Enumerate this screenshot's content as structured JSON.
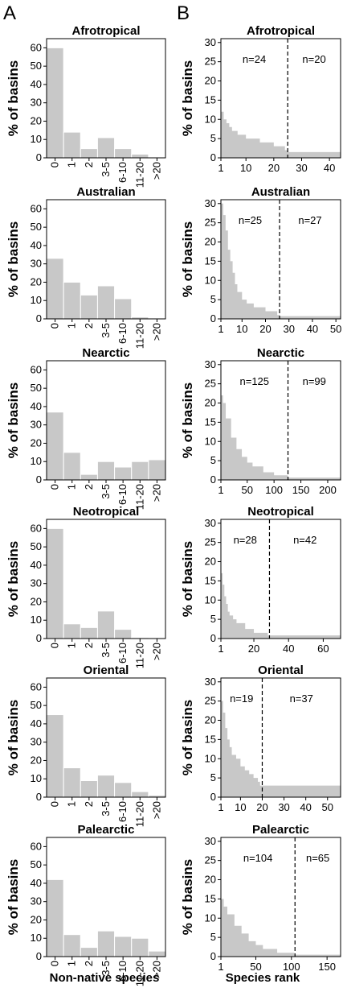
{
  "panel_labels": {
    "left": "A",
    "right": "B"
  },
  "axis_titles": {
    "y": "% of basins",
    "x_left": "Non-native species",
    "x_right": "Species rank"
  },
  "colors": {
    "bar": "#c8c8c8",
    "bar_edge": "#ffffff",
    "axis": "#000000"
  },
  "chart_data": [
    {
      "panel": "A",
      "type": "bar",
      "title": "Afrotropical",
      "categories": [
        "0",
        "1",
        "2",
        "3-5",
        "6-10",
        "11-20",
        ">20"
      ],
      "values": [
        60,
        14,
        5,
        11,
        5,
        2,
        0
      ],
      "ylabel": "% of basins",
      "ylim": [
        0,
        65
      ],
      "yticks": [
        0,
        10,
        20,
        30,
        40,
        50,
        60
      ]
    },
    {
      "panel": "B",
      "type": "area",
      "title": "Afrotropical",
      "x": [
        1,
        2,
        3,
        4,
        5,
        7,
        10,
        15,
        20,
        24,
        25,
        44
      ],
      "values": [
        12,
        10,
        9,
        8,
        7,
        6,
        5,
        4,
        3,
        2,
        1.5,
        1
      ],
      "xlim": [
        1,
        44
      ],
      "ylim": [
        0,
        31
      ],
      "xticks": [
        1,
        10,
        20,
        30,
        40
      ],
      "yticks": [
        0,
        5,
        10,
        15,
        20,
        25,
        30
      ],
      "cutoff": 25,
      "n_left": "n=24",
      "n_right": "n=20",
      "ylabel": "% of basins"
    },
    {
      "panel": "A",
      "type": "bar",
      "title": "Australian",
      "categories": [
        "0",
        "1",
        "2",
        "3-5",
        "6-10",
        "11-20",
        ">20"
      ],
      "values": [
        33,
        20,
        13,
        18,
        11,
        1,
        0
      ],
      "ylabel": "% of basins",
      "ylim": [
        0,
        65
      ],
      "yticks": [
        0,
        10,
        20,
        30,
        40,
        50,
        60
      ]
    },
    {
      "panel": "B",
      "type": "area",
      "title": "Australian",
      "x": [
        1,
        2,
        3,
        4,
        5,
        6,
        7,
        8,
        10,
        12,
        15,
        20,
        25,
        26,
        52
      ],
      "values": [
        30,
        27,
        23,
        18,
        15,
        12,
        9,
        7,
        5,
        4,
        3,
        2,
        1,
        0.7,
        0.7
      ],
      "xlim": [
        1,
        52
      ],
      "ylim": [
        0,
        31
      ],
      "xticks": [
        1,
        10,
        20,
        30,
        40,
        50
      ],
      "yticks": [
        0,
        5,
        10,
        15,
        20,
        25,
        30
      ],
      "cutoff": 26,
      "n_left": "n=25",
      "n_right": "n=27",
      "ylabel": "% of basins"
    },
    {
      "panel": "A",
      "type": "bar",
      "title": "Nearctic",
      "categories": [
        "0",
        "1",
        "2",
        "3-5",
        "6-10",
        "11-20",
        ">20"
      ],
      "values": [
        37,
        15,
        3,
        10,
        7,
        10,
        11
      ],
      "ylabel": "% of basins",
      "ylim": [
        0,
        65
      ],
      "yticks": [
        0,
        10,
        20,
        30,
        40,
        50,
        60
      ]
    },
    {
      "panel": "B",
      "type": "area",
      "title": "Nearctic",
      "x": [
        1,
        5,
        10,
        20,
        30,
        40,
        50,
        60,
        80,
        100,
        125,
        224
      ],
      "values": [
        22,
        20,
        16,
        11,
        8,
        6,
        4.5,
        3.5,
        2,
        1.2,
        0.6,
        0.3
      ],
      "xlim": [
        1,
        224
      ],
      "ylim": [
        0,
        31
      ],
      "xticks": [
        1,
        50,
        100,
        150,
        200
      ],
      "yticks": [
        0,
        5,
        10,
        15,
        20,
        25,
        30
      ],
      "cutoff": 126,
      "n_left": "n=125",
      "n_right": "n=99",
      "ylabel": "% of basins"
    },
    {
      "panel": "A",
      "type": "bar",
      "title": "Neotropical",
      "categories": [
        "0",
        "1",
        "2",
        "3-5",
        "6-10",
        "11-20",
        ">20"
      ],
      "values": [
        60,
        8,
        6,
        15,
        5,
        0.5,
        0
      ],
      "ylabel": "% of basins",
      "ylim": [
        0,
        65
      ],
      "yticks": [
        0,
        10,
        20,
        30,
        40,
        50,
        60
      ]
    },
    {
      "panel": "B",
      "type": "area",
      "title": "Neotropical",
      "x": [
        1,
        2,
        3,
        4,
        5,
        6,
        8,
        10,
        15,
        20,
        28,
        70
      ],
      "values": [
        17,
        14,
        11,
        9,
        7,
        6,
        5,
        4,
        2.5,
        1.5,
        0.8,
        0.5
      ],
      "xlim": [
        1,
        70
      ],
      "ylim": [
        0,
        31
      ],
      "xticks": [
        1,
        20,
        40,
        60
      ],
      "yticks": [
        0,
        5,
        10,
        15,
        20,
        25,
        30
      ],
      "cutoff": 29,
      "n_left": "n=28",
      "n_right": "n=42",
      "ylabel": "% of basins"
    },
    {
      "panel": "A",
      "type": "bar",
      "title": "Oriental",
      "categories": [
        "0",
        "1",
        "2",
        "3-5",
        "6-10",
        "11-20",
        ">20"
      ],
      "values": [
        45,
        16,
        9,
        12,
        8,
        3,
        1
      ],
      "ylabel": "% of basins",
      "ylim": [
        0,
        65
      ],
      "yticks": [
        0,
        10,
        20,
        30,
        40,
        50,
        60
      ]
    },
    {
      "panel": "B",
      "type": "area",
      "title": "Oriental",
      "x": [
        1,
        2,
        3,
        4,
        5,
        6,
        8,
        10,
        12,
        14,
        16,
        18,
        19,
        56
      ],
      "values": [
        25,
        22,
        18,
        15,
        13,
        11,
        10,
        8,
        7,
        6,
        5,
        4,
        3,
        2
      ],
      "xlim": [
        1,
        56
      ],
      "ylim": [
        0,
        31
      ],
      "xticks": [
        1,
        10,
        20,
        30,
        40,
        50
      ],
      "yticks": [
        0,
        5,
        10,
        15,
        20,
        25,
        30
      ],
      "cutoff": 20,
      "n_left": "n=19",
      "n_right": "n=37",
      "ylabel": "% of basins"
    },
    {
      "panel": "A",
      "type": "bar",
      "title": "Palearctic",
      "categories": [
        "0",
        "1",
        "2",
        "3-5",
        "6-10",
        "11-20",
        ">20"
      ],
      "values": [
        42,
        12,
        5,
        14,
        11,
        10,
        3
      ],
      "ylabel": "% of basins",
      "ylim": [
        0,
        65
      ],
      "yticks": [
        0,
        10,
        20,
        30,
        40,
        50,
        60
      ]
    },
    {
      "panel": "B",
      "type": "area",
      "title": "Palearctic",
      "x": [
        1,
        5,
        10,
        20,
        30,
        40,
        50,
        60,
        80,
        104,
        169
      ],
      "values": [
        15,
        13,
        11,
        8,
        6,
        4,
        3,
        2,
        1,
        0.5,
        0.3
      ],
      "xlim": [
        1,
        169
      ],
      "ylim": [
        0,
        31
      ],
      "xticks": [
        1,
        50,
        100,
        150
      ],
      "yticks": [
        0,
        5,
        10,
        15,
        20,
        25,
        30
      ],
      "cutoff": 105,
      "n_left": "n=104",
      "n_right": "n=65",
      "ylabel": "% of basins"
    }
  ]
}
